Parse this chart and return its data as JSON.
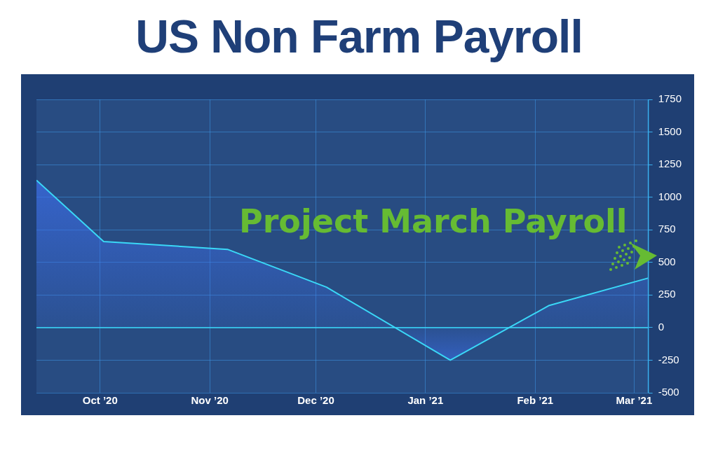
{
  "chart_data": {
    "type": "area",
    "title": "US Non Farm Payroll",
    "x": [
      "2020-09-13",
      "2020-10-02",
      "2020-11-06",
      "2020-12-04",
      "2021-01-08",
      "2021-02-05",
      "2021-03-05"
    ],
    "series": [
      {
        "color": "#3ad8f7",
        "values": [
          1130,
          660,
          600,
          310,
          -250,
          170,
          380
        ]
      }
    ],
    "xlim": [
      "2020-09-13",
      "2021-03-05"
    ],
    "xticks": [
      {
        "value": "2020-10-01",
        "label": "Oct ’20"
      },
      {
        "value": "2020-11-01",
        "label": "Nov ’20"
      },
      {
        "value": "2020-12-01",
        "label": "Dec ’20"
      },
      {
        "value": "2021-01-01",
        "label": "Jan ’21"
      },
      {
        "value": "2021-02-01",
        "label": "Feb ’21"
      },
      {
        "value": "2021-03-01",
        "label": "Mar ’21"
      }
    ],
    "ylim": [
      -500,
      1750
    ],
    "yticks": [
      -500,
      -250,
      0,
      250,
      500,
      750,
      1000,
      1250,
      1500,
      1750
    ],
    "grid": true,
    "marker": "none",
    "line_style": "solid",
    "ref_lines": [
      {
        "axis": "y",
        "value": 0,
        "color": "#3ad8f7"
      }
    ],
    "annotations": [
      "Project March Payroll"
    ]
  }
}
